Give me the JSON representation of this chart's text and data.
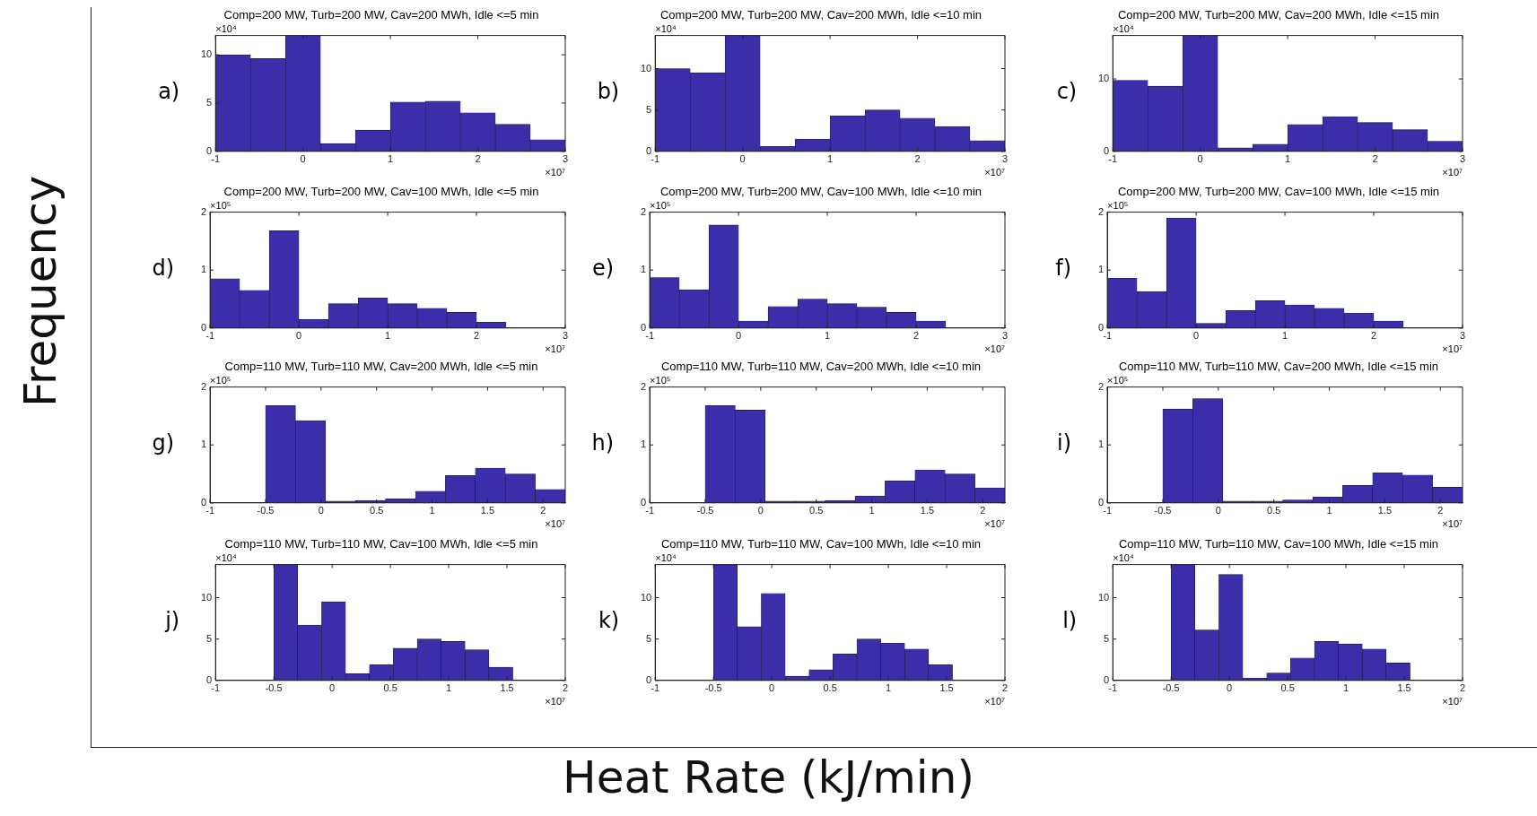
{
  "chart_data": [
    {
      "type": "histogram",
      "title": "Comp=200 MW, Turb=200 MW, Cav=200 MWh, Idle <=5 min",
      "ylabel": "Frequency",
      "xlabel": "Heat Rate (kJ/min)",
      "annotations": [
        "a)",
        "×10⁴",
        "×10⁷"
      ],
      "color": "#3b2ea8",
      "bins": [
        -1,
        -0.6,
        -0.2,
        0.2,
        0.6,
        1,
        1.4,
        1.8,
        2.2,
        2.6,
        3
      ],
      "values": [
        10,
        9.6,
        12,
        0.8,
        2.2,
        5.1,
        5.2,
        4.0,
        2.8,
        1.2
      ],
      "xlim": [
        -1,
        3
      ],
      "xticks": [
        -1,
        0,
        1,
        2,
        3
      ],
      "ylim": [
        0,
        12
      ],
      "yticks": [
        0,
        5,
        10
      ],
      "grid": false,
      "legend": false
    },
    {
      "type": "histogram",
      "title": "Comp=200 MW, Turb=200 MW, Cav=200 MWh, Idle <=10 min",
      "annotations": [
        "b)",
        "×10⁴",
        "×10⁷"
      ],
      "color": "#3b2ea8",
      "bins": [
        -1,
        -0.6,
        -0.2,
        0.2,
        0.6,
        1,
        1.4,
        1.8,
        2.2,
        2.6,
        3
      ],
      "values": [
        10,
        9.5,
        14,
        0.6,
        1.5,
        4.3,
        5.0,
        4.0,
        3.0,
        1.3
      ],
      "xlim": [
        -1,
        3
      ],
      "xticks": [
        -1,
        0,
        1,
        2,
        3
      ],
      "ylim": [
        0,
        14
      ],
      "yticks": [
        0,
        5,
        10
      ],
      "grid": false,
      "legend": false
    },
    {
      "type": "histogram",
      "title": "Comp=200 MW, Turb=200 MW, Cav=200 MWh, Idle <=15 min",
      "annotations": [
        "c)",
        "×10⁴",
        "×10⁷"
      ],
      "color": "#3b2ea8",
      "bins": [
        -1,
        -0.6,
        -0.2,
        0.2,
        0.6,
        1,
        1.4,
        1.8,
        2.2,
        2.6,
        3
      ],
      "values": [
        9.8,
        9.0,
        16,
        0.5,
        1.0,
        3.7,
        4.8,
        4.0,
        3.0,
        1.4
      ],
      "xlim": [
        -1,
        3
      ],
      "xticks": [
        -1,
        0,
        1,
        2,
        3
      ],
      "ylim": [
        0,
        16
      ],
      "yticks": [
        0,
        10
      ],
      "grid": false,
      "legend": false
    },
    {
      "type": "histogram",
      "title": "Comp=200 MW, Turb=200 MW, Cav=100 MWh, Idle <=5 min",
      "annotations": [
        "d)",
        "×10⁵",
        "×10⁷"
      ],
      "color": "#3b2ea8",
      "bins": [
        -1,
        -0.667,
        -0.333,
        0,
        0.333,
        0.667,
        1,
        1.333,
        1.667,
        2,
        2.333
      ],
      "values": [
        0.85,
        0.65,
        1.68,
        0.15,
        0.42,
        0.52,
        0.42,
        0.34,
        0.27,
        0.1
      ],
      "xlim": [
        -1,
        3
      ],
      "xticks": [
        -1,
        0,
        1,
        2,
        3
      ],
      "ylim": [
        0,
        2
      ],
      "yticks": [
        0,
        1,
        2
      ],
      "grid": false,
      "legend": false
    },
    {
      "type": "histogram",
      "title": "Comp=200 MW, Turb=200 MW, Cav=100 MWh, Idle <=10 min",
      "annotations": [
        "e)",
        "×10⁵",
        "×10⁷"
      ],
      "color": "#3b2ea8",
      "bins": [
        -1,
        -0.667,
        -0.333,
        0,
        0.333,
        0.667,
        1,
        1.333,
        1.667,
        2,
        2.333
      ],
      "values": [
        0.87,
        0.66,
        1.78,
        0.12,
        0.37,
        0.5,
        0.42,
        0.36,
        0.27,
        0.12
      ],
      "xlim": [
        -1,
        3
      ],
      "xticks": [
        -1,
        0,
        1,
        2,
        3
      ],
      "ylim": [
        0,
        2
      ],
      "yticks": [
        0,
        1,
        2
      ],
      "grid": false,
      "legend": false
    },
    {
      "type": "histogram",
      "title": "Comp=200 MW, Turb=200 MW, Cav=100 MWh, Idle <=15 min",
      "annotations": [
        "f)",
        "×10⁵",
        "×10⁷"
      ],
      "color": "#3b2ea8",
      "bins": [
        -1,
        -0.667,
        -0.333,
        0,
        0.333,
        0.667,
        1,
        1.333,
        1.667,
        2,
        2.333
      ],
      "values": [
        0.86,
        0.63,
        1.9,
        0.08,
        0.3,
        0.47,
        0.4,
        0.34,
        0.26,
        0.12
      ],
      "xlim": [
        -1,
        3
      ],
      "xticks": [
        -1,
        0,
        1,
        2,
        3
      ],
      "ylim": [
        0,
        2
      ],
      "yticks": [
        0,
        1,
        2
      ],
      "grid": false,
      "legend": false
    },
    {
      "type": "histogram",
      "title": "Comp=110 MW, Turb=110 MW, Cav=200 MWh, Idle <=5 min",
      "annotations": [
        "g)",
        "×10⁵",
        "×10⁷"
      ],
      "color": "#3b2ea8",
      "bins": [
        -0.5,
        -0.23,
        0.04,
        0.31,
        0.58,
        0.85,
        1.12,
        1.39,
        1.66,
        1.93,
        2.2
      ],
      "values": [
        1.68,
        1.42,
        0.03,
        0.04,
        0.07,
        0.2,
        0.47,
        0.6,
        0.5,
        0.23
      ],
      "xlim": [
        -1,
        2.2
      ],
      "xticks": [
        -1,
        -0.5,
        0,
        0.5,
        1,
        1.5,
        2
      ],
      "ylim": [
        0,
        2
      ],
      "yticks": [
        0,
        1,
        2
      ],
      "grid": false,
      "legend": false
    },
    {
      "type": "histogram",
      "title": "Comp=110 MW, Turb=110 MW, Cav=200 MWh, Idle <=10 min",
      "annotations": [
        "h)",
        "×10⁵",
        "×10⁷"
      ],
      "color": "#3b2ea8",
      "bins": [
        -0.5,
        -0.23,
        0.04,
        0.31,
        0.58,
        0.85,
        1.12,
        1.39,
        1.66,
        1.93,
        2.2
      ],
      "values": [
        1.68,
        1.6,
        0.03,
        0.03,
        0.04,
        0.12,
        0.38,
        0.57,
        0.5,
        0.26
      ],
      "xlim": [
        -1,
        2.2
      ],
      "xticks": [
        -1,
        -0.5,
        0,
        0.5,
        1,
        1.5,
        2
      ],
      "ylim": [
        0,
        2
      ],
      "yticks": [
        0,
        1,
        2
      ],
      "grid": false,
      "legend": false
    },
    {
      "type": "histogram",
      "title": "Comp=110 MW, Turb=110 MW, Cav=200 MWh, Idle <=15 min",
      "annotations": [
        "i)",
        "×10⁵",
        "×10⁷"
      ],
      "color": "#3b2ea8",
      "bins": [
        -0.5,
        -0.23,
        0.04,
        0.31,
        0.58,
        0.85,
        1.12,
        1.39,
        1.66,
        1.93,
        2.2
      ],
      "values": [
        1.62,
        1.8,
        0.03,
        0.03,
        0.05,
        0.1,
        0.3,
        0.52,
        0.48,
        0.27
      ],
      "xlim": [
        -1,
        2.2
      ],
      "xticks": [
        -1,
        -0.5,
        0,
        0.5,
        1,
        1.5,
        2
      ],
      "ylim": [
        0,
        2
      ],
      "yticks": [
        0,
        1,
        2
      ],
      "grid": false,
      "legend": false
    },
    {
      "type": "histogram",
      "title": "Comp=110 MW, Turb=110 MW, Cav=100 MWh, Idle <=5 min",
      "annotations": [
        "j)",
        "×10⁴",
        "×10⁷"
      ],
      "color": "#3b2ea8",
      "bins": [
        -0.5,
        -0.295,
        -0.09,
        0.115,
        0.32,
        0.525,
        0.73,
        0.935,
        1.14,
        1.345,
        1.55
      ],
      "values": [
        14,
        6.7,
        9.5,
        0.8,
        1.9,
        3.9,
        5.0,
        4.7,
        3.7,
        1.6
      ],
      "xlim": [
        -1,
        2
      ],
      "xticks": [
        -1,
        -0.5,
        0,
        0.5,
        1,
        1.5,
        2
      ],
      "ylim": [
        0,
        14
      ],
      "yticks": [
        0,
        5,
        10
      ],
      "grid": false,
      "legend": false
    },
    {
      "type": "histogram",
      "title": "Comp=110 MW, Turb=110 MW, Cav=100 MWh, Idle <=10 min",
      "annotations": [
        "k)",
        "×10⁴",
        "×10⁷"
      ],
      "color": "#3b2ea8",
      "bins": [
        -0.5,
        -0.295,
        -0.09,
        0.115,
        0.32,
        0.525,
        0.73,
        0.935,
        1.14,
        1.345,
        1.55
      ],
      "values": [
        14,
        6.5,
        10.5,
        0.5,
        1.3,
        3.2,
        5.0,
        4.5,
        3.8,
        1.9
      ],
      "xlim": [
        -1,
        2
      ],
      "xticks": [
        -1,
        -0.5,
        0,
        0.5,
        1,
        1.5,
        2
      ],
      "ylim": [
        0,
        14
      ],
      "yticks": [
        0,
        5,
        10
      ],
      "grid": false,
      "legend": false
    },
    {
      "type": "histogram",
      "title": "Comp=110 MW, Turb=110 MW, Cav=100 MWh, Idle <=15 min",
      "annotations": [
        "l)",
        "×10⁴",
        "×10⁷"
      ],
      "color": "#3b2ea8",
      "bins": [
        -0.5,
        -0.295,
        -0.09,
        0.115,
        0.32,
        0.525,
        0.73,
        0.935,
        1.14,
        1.345,
        1.55
      ],
      "values": [
        14,
        6.1,
        12.8,
        0.3,
        0.9,
        2.7,
        4.7,
        4.4,
        3.8,
        2.1
      ],
      "xlim": [
        -1,
        2
      ],
      "xticks": [
        -1,
        -0.5,
        0,
        0.5,
        1,
        1.5,
        2
      ],
      "ylim": [
        0,
        14
      ],
      "yticks": [
        0,
        5,
        10
      ],
      "grid": false,
      "legend": false
    }
  ]
}
